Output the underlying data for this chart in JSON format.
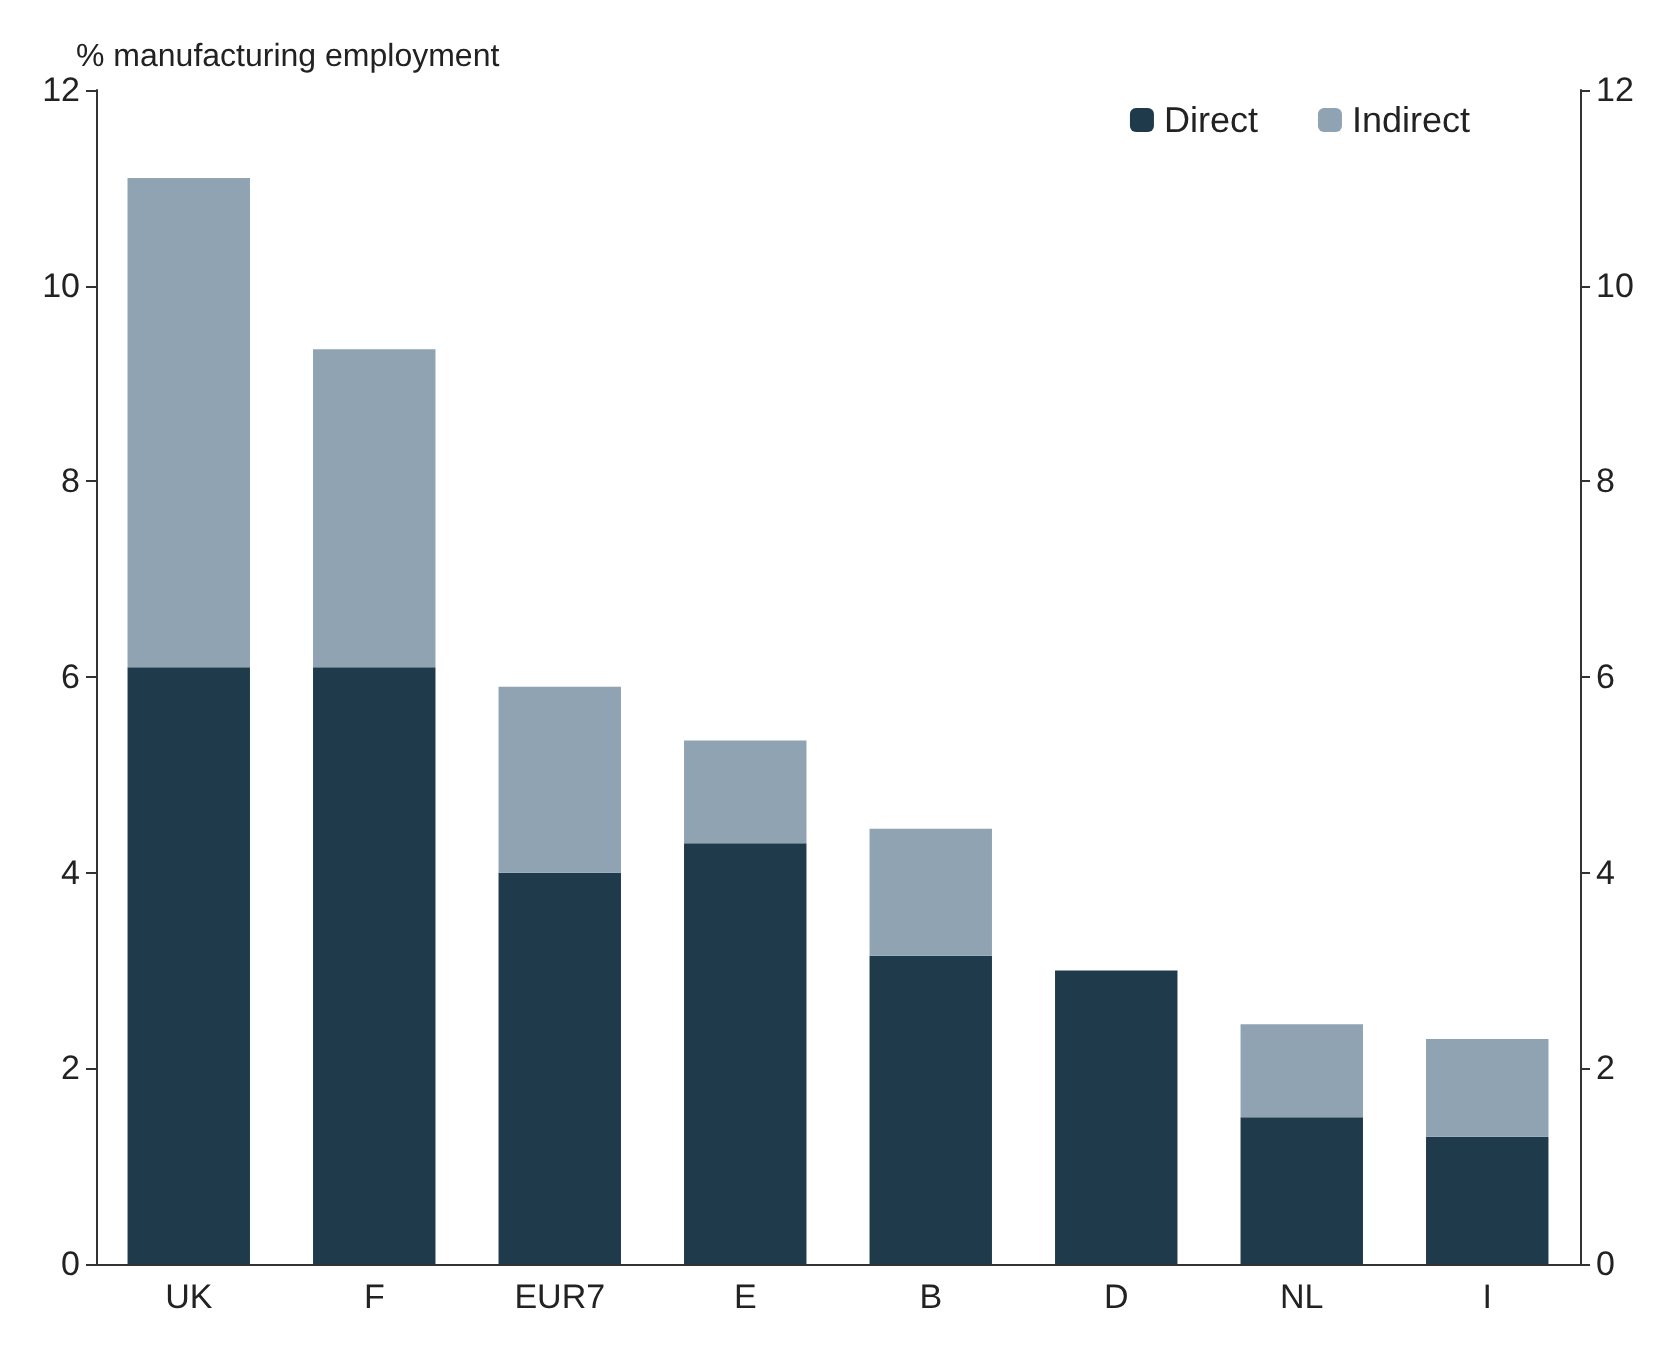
{
  "chart_data": {
    "type": "bar",
    "ylabel": "% manufacturing employment",
    "categories": [
      "UK",
      "F",
      "EUR7",
      "E",
      "B",
      "D",
      "NL",
      "I"
    ],
    "stacked": true,
    "series": [
      {
        "name": "Direct",
        "color": "#1f3a4a",
        "values": [
          6.1,
          6.1,
          4.0,
          4.3,
          3.15,
          3.0,
          1.5,
          1.3
        ]
      },
      {
        "name": "Indirect",
        "color": "#8fa3b3",
        "values": [
          5.0,
          3.25,
          1.9,
          1.05,
          1.3,
          0,
          0.95,
          1.0
        ]
      }
    ],
    "ylim": [
      0,
      12
    ],
    "yticks": [
      0,
      2,
      4,
      6,
      8,
      10,
      12
    ],
    "y2lim": [
      0,
      12
    ],
    "y2ticks": [
      0,
      2,
      4,
      6,
      8,
      10,
      12
    ],
    "legend": "top right",
    "grid": false
  }
}
